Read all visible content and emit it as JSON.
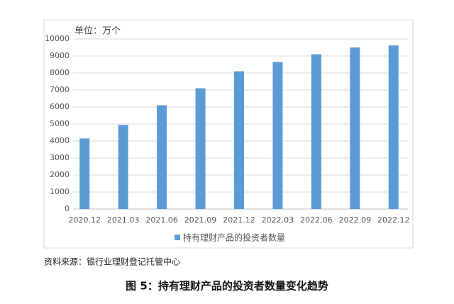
{
  "chart_data": {
    "type": "bar",
    "ylabel": "单位：万个",
    "categories": [
      "2020.12",
      "2021.03",
      "2021.06",
      "2021.09",
      "2021.12",
      "2022.03",
      "2022.06",
      "2022.09",
      "2022.12"
    ],
    "series": [
      {
        "name": "持有理财产品的投资者数量",
        "color": "#5b9bd5",
        "values": [
          4150,
          4950,
          6100,
          7100,
          8100,
          8650,
          9100,
          9500,
          9620
        ]
      }
    ],
    "ylim": [
      0,
      10000
    ],
    "yticks": [
      0,
      1000,
      2000,
      3000,
      4000,
      5000,
      6000,
      7000,
      8000,
      9000,
      10000
    ],
    "grid": true,
    "legend": "bottom"
  },
  "source": "资料来源：银行业理财登记托管中心",
  "caption": "图 5：持有理财产品的投资者数量变化趋势"
}
